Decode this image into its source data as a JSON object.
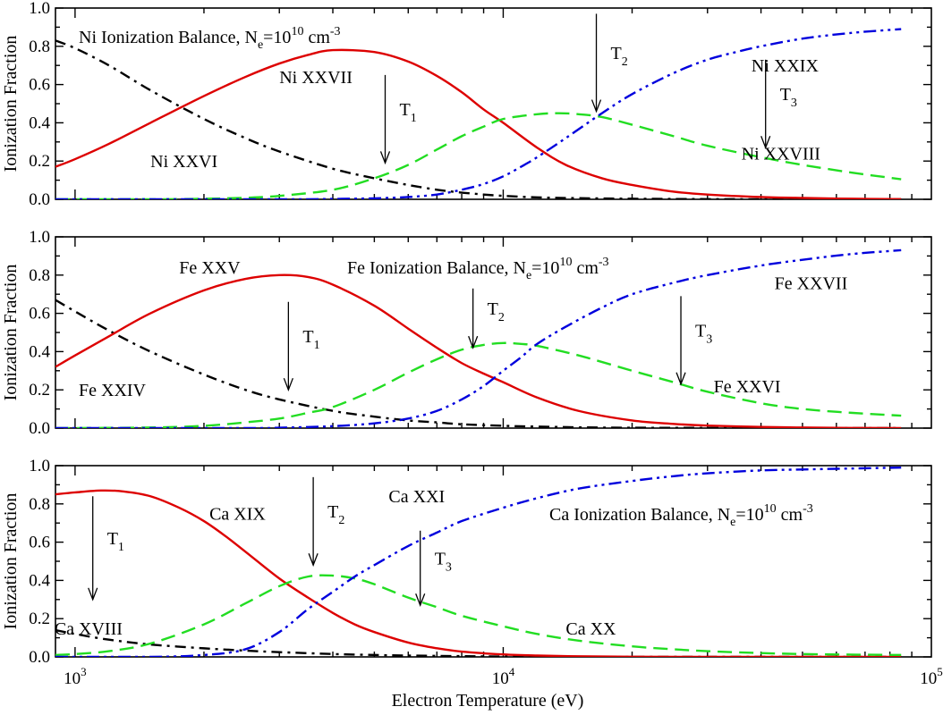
{
  "figure": {
    "xlabel": "Electron Temperature (eV)",
    "x_tick_labels": [
      {
        "value": 1000,
        "base": "10",
        "exp": "3"
      },
      {
        "value": 10000,
        "base": "10",
        "exp": "4"
      },
      {
        "value": 100000,
        "base": "10",
        "exp": "5"
      }
    ]
  },
  "chart_data": [
    {
      "type": "line",
      "panel": "ni",
      "ylabel": "Ionization Fraction",
      "xscale": "log",
      "xlim": [
        900,
        100000
      ],
      "ylim": [
        0,
        1
      ],
      "y_ticks": [
        "0.0",
        "0.2",
        "0.4",
        "0.6",
        "0.8",
        "1.0"
      ],
      "balance_label": {
        "prefix": "Ni Ionization Balance, N",
        "sub": "e",
        "mid": "=10",
        "sup1": "10",
        "unit": " cm",
        "sup2": "-3"
      },
      "series": [
        {
          "id": "ni-xxvi",
          "label": "Ni XXVI",
          "color": "#000000",
          "dash": "12,6,3,6",
          "x": [
            900,
            1000,
            1200,
            1500,
            2000,
            2500,
            3000,
            4000,
            5000,
            6000,
            7000,
            8000,
            9000,
            10000,
            12000,
            15000,
            20000,
            30000,
            50000,
            85000
          ],
          "y": [
            0.83,
            0.79,
            0.7,
            0.57,
            0.42,
            0.32,
            0.25,
            0.16,
            0.11,
            0.075,
            0.05,
            0.035,
            0.025,
            0.018,
            0.01,
            0.006,
            0.003,
            0.001,
            0.0,
            0.0
          ]
        },
        {
          "id": "ni-xxvii",
          "label": "Ni XXVII",
          "color": "#dd0000",
          "dash": "",
          "x": [
            900,
            1000,
            1200,
            1500,
            2000,
            2500,
            3000,
            3500,
            4000,
            5000,
            6000,
            7000,
            8000,
            9000,
            10000,
            12000,
            14000,
            17000,
            20000,
            25000,
            30000,
            40000,
            50000,
            65000,
            85000
          ],
          "y": [
            0.17,
            0.21,
            0.29,
            0.4,
            0.54,
            0.64,
            0.71,
            0.755,
            0.78,
            0.77,
            0.72,
            0.645,
            0.56,
            0.47,
            0.4,
            0.27,
            0.18,
            0.11,
            0.075,
            0.04,
            0.025,
            0.012,
            0.007,
            0.003,
            0.001
          ]
        },
        {
          "id": "ni-xxviii",
          "label": "Ni XXVIII",
          "color": "#22dd22",
          "dash": "16,8",
          "x": [
            900,
            1500,
            2000,
            2500,
            3000,
            4000,
            5000,
            6000,
            7000,
            8000,
            9000,
            10000,
            12000,
            13500,
            15000,
            17000,
            20000,
            25000,
            30000,
            40000,
            50000,
            65000,
            85000
          ],
          "y": [
            0.0,
            0.0,
            0.003,
            0.008,
            0.018,
            0.05,
            0.11,
            0.18,
            0.26,
            0.33,
            0.38,
            0.42,
            0.445,
            0.45,
            0.445,
            0.43,
            0.39,
            0.33,
            0.28,
            0.22,
            0.18,
            0.14,
            0.105
          ]
        },
        {
          "id": "ni-xxix",
          "label": "Ni XXIX",
          "color": "#0000dd",
          "dash": "14,5,3,5,3,5",
          "x": [
            900,
            3000,
            4000,
            5000,
            6000,
            7000,
            8000,
            9000,
            10000,
            11000,
            12000,
            14000,
            17000,
            20000,
            25000,
            30000,
            35000,
            40000,
            50000,
            65000,
            85000
          ],
          "y": [
            0.0,
            0.0,
            0.002,
            0.005,
            0.012,
            0.025,
            0.05,
            0.08,
            0.12,
            0.17,
            0.22,
            0.32,
            0.45,
            0.55,
            0.66,
            0.73,
            0.77,
            0.8,
            0.84,
            0.87,
            0.89
          ]
        }
      ],
      "ion_labels": [
        {
          "id": "ni-xxvi",
          "text": "Ni XXVI",
          "x": 1500,
          "y": 0.2,
          "anchor": "start"
        },
        {
          "id": "ni-xxvii",
          "text": "Ni XXVII",
          "x": 3000,
          "y": 0.64,
          "anchor": "start"
        },
        {
          "id": "ni-xxviii",
          "text": "Ni XXVIII",
          "x": 36000,
          "y": 0.24,
          "anchor": "start"
        },
        {
          "id": "ni-xxix",
          "text": "Ni XXIX",
          "x": 38000,
          "y": 0.7,
          "anchor": "start"
        }
      ],
      "arrows": [
        {
          "id": "ni-t1",
          "label": "T",
          "sub": "1",
          "x": 5300,
          "y_from": 0.65,
          "y_to": 0.19
        },
        {
          "id": "ni-t2",
          "label": "T",
          "sub": "2",
          "x": 16500,
          "y_from": 0.97,
          "y_to": 0.46
        },
        {
          "id": "ni-t3",
          "label": "T",
          "sub": "3",
          "x": 41000,
          "y_from": 0.73,
          "y_to": 0.27
        }
      ]
    },
    {
      "type": "line",
      "panel": "fe",
      "ylabel": "Ionization Fraction",
      "xscale": "log",
      "xlim": [
        900,
        100000
      ],
      "ylim": [
        0,
        1
      ],
      "y_ticks": [
        "0.0",
        "0.2",
        "0.4",
        "0.6",
        "0.8",
        "1.0"
      ],
      "balance_label": {
        "prefix": "Fe Ionization Balance, N",
        "sub": "e",
        "mid": "=10",
        "sup1": "10",
        "unit": " cm",
        "sup2": "-3"
      },
      "series": [
        {
          "id": "fe-xxiv",
          "label": "Fe XXIV",
          "color": "#000000",
          "dash": "12,6,3,6",
          "x": [
            900,
            1000,
            1200,
            1500,
            2000,
            2500,
            3000,
            4000,
            5000,
            6000,
            7000,
            8000,
            10000,
            12000,
            15000,
            20000,
            30000,
            50000,
            85000
          ],
          "y": [
            0.67,
            0.61,
            0.51,
            0.4,
            0.28,
            0.2,
            0.15,
            0.09,
            0.06,
            0.04,
            0.03,
            0.02,
            0.012,
            0.008,
            0.004,
            0.002,
            0.001,
            0.0,
            0.0
          ]
        },
        {
          "id": "fe-xxv",
          "label": "Fe XXV",
          "color": "#dd0000",
          "dash": "",
          "x": [
            900,
            1000,
            1200,
            1500,
            2000,
            2500,
            3000,
            3500,
            4000,
            5000,
            6000,
            7000,
            8000,
            9000,
            10000,
            12000,
            15000,
            20000,
            25000,
            30000,
            40000,
            50000,
            65000,
            85000
          ],
          "y": [
            0.32,
            0.38,
            0.48,
            0.6,
            0.72,
            0.78,
            0.8,
            0.79,
            0.75,
            0.64,
            0.52,
            0.42,
            0.34,
            0.285,
            0.24,
            0.16,
            0.09,
            0.04,
            0.022,
            0.013,
            0.006,
            0.003,
            0.001,
            0.0
          ]
        },
        {
          "id": "fe-xxvi",
          "label": "Fe XXVI",
          "color": "#22dd22",
          "dash": "16,8",
          "x": [
            900,
            1500,
            2000,
            2500,
            3000,
            3500,
            4000,
            5000,
            6000,
            7000,
            8000,
            9000,
            10000,
            11000,
            12000,
            15000,
            20000,
            25000,
            30000,
            40000,
            50000,
            65000,
            85000
          ],
          "y": [
            0.0,
            0.003,
            0.012,
            0.03,
            0.05,
            0.08,
            0.11,
            0.2,
            0.29,
            0.36,
            0.41,
            0.435,
            0.445,
            0.44,
            0.43,
            0.38,
            0.3,
            0.24,
            0.19,
            0.13,
            0.1,
            0.08,
            0.065
          ]
        },
        {
          "id": "fe-xxvii",
          "label": "Fe XXVII",
          "color": "#0000dd",
          "dash": "14,5,3,5,3,5",
          "x": [
            900,
            2500,
            3000,
            4000,
            5000,
            6000,
            7000,
            8000,
            9000,
            10000,
            11000,
            12000,
            14000,
            17000,
            20000,
            25000,
            30000,
            40000,
            50000,
            65000,
            85000
          ],
          "y": [
            0.0,
            0.0,
            0.002,
            0.01,
            0.025,
            0.05,
            0.09,
            0.15,
            0.22,
            0.3,
            0.37,
            0.44,
            0.53,
            0.63,
            0.7,
            0.76,
            0.8,
            0.85,
            0.88,
            0.91,
            0.93
          ]
        }
      ],
      "ion_labels": [
        {
          "id": "fe-xxiv",
          "text": "Fe XXIV",
          "x": 1020,
          "y": 0.2,
          "anchor": "start"
        },
        {
          "id": "fe-xxv",
          "text": "Fe XXV",
          "x": 1750,
          "y": 0.84,
          "anchor": "start"
        },
        {
          "id": "fe-xxvi",
          "text": "Fe XXVI",
          "x": 31000,
          "y": 0.22,
          "anchor": "start"
        },
        {
          "id": "fe-xxvii",
          "text": "Fe XXVII",
          "x": 43000,
          "y": 0.76,
          "anchor": "start"
        }
      ],
      "arrows": [
        {
          "id": "fe-t1",
          "label": "T",
          "sub": "1",
          "x": 3150,
          "y_from": 0.66,
          "y_to": 0.2
        },
        {
          "id": "fe-t2",
          "label": "T",
          "sub": "2",
          "x": 8500,
          "y_from": 0.73,
          "y_to": 0.42
        },
        {
          "id": "fe-t3",
          "label": "T",
          "sub": "3",
          "x": 26000,
          "y_from": 0.69,
          "y_to": 0.23
        }
      ]
    },
    {
      "type": "line",
      "panel": "ca",
      "ylabel": "Ionization Fraction",
      "xscale": "log",
      "xlim": [
        900,
        100000
      ],
      "ylim": [
        0,
        1
      ],
      "y_ticks": [
        "0.0",
        "0.2",
        "0.4",
        "0.6",
        "0.8",
        "1.0"
      ],
      "balance_label": {
        "prefix": "Ca Ionization Balance, N",
        "sub": "e",
        "mid": "=10",
        "sup1": "10",
        "unit": " cm",
        "sup2": "-3"
      },
      "series": [
        {
          "id": "ca-xviii",
          "label": "Ca XVIII",
          "color": "#000000",
          "dash": "12,6,3,6",
          "x": [
            900,
            1000,
            1200,
            1500,
            2000,
            2500,
            3000,
            4000,
            5000,
            6000,
            8000,
            10000,
            15000,
            25000,
            50000,
            85000
          ],
          "y": [
            0.14,
            0.12,
            0.09,
            0.065,
            0.045,
            0.033,
            0.025,
            0.015,
            0.01,
            0.007,
            0.004,
            0.002,
            0.001,
            0.0,
            0.0,
            0.0
          ]
        },
        {
          "id": "ca-xix",
          "label": "Ca XIX",
          "color": "#dd0000",
          "dash": "",
          "x": [
            900,
            1000,
            1150,
            1300,
            1500,
            1750,
            2000,
            2250,
            2500,
            3000,
            3500,
            4000,
            4500,
            5000,
            6000,
            7000,
            8000,
            10000,
            12000,
            15000,
            20000,
            30000,
            50000,
            85000
          ],
          "y": [
            0.85,
            0.86,
            0.87,
            0.865,
            0.84,
            0.78,
            0.71,
            0.63,
            0.55,
            0.41,
            0.31,
            0.23,
            0.17,
            0.13,
            0.075,
            0.045,
            0.028,
            0.013,
            0.007,
            0.003,
            0.001,
            0.0,
            0.0,
            0.0
          ]
        },
        {
          "id": "ca-xx",
          "label": "Ca XX",
          "color": "#22dd22",
          "dash": "16,8",
          "x": [
            900,
            1000,
            1200,
            1500,
            2000,
            2500,
            3000,
            3500,
            4000,
            4500,
            5000,
            6000,
            7000,
            8000,
            10000,
            12000,
            15000,
            20000,
            25000,
            30000,
            40000,
            50000,
            65000,
            85000
          ],
          "y": [
            0.01,
            0.015,
            0.03,
            0.07,
            0.17,
            0.28,
            0.37,
            0.42,
            0.425,
            0.41,
            0.38,
            0.31,
            0.26,
            0.215,
            0.16,
            0.12,
            0.085,
            0.055,
            0.04,
            0.03,
            0.02,
            0.015,
            0.012,
            0.01
          ]
        },
        {
          "id": "ca-xxi",
          "label": "Ca XXI",
          "color": "#0000dd",
          "dash": "14,5,3,5,3,5",
          "x": [
            900,
            1500,
            2000,
            2500,
            3000,
            3500,
            4000,
            4500,
            5000,
            6000,
            7000,
            8000,
            10000,
            12000,
            15000,
            20000,
            25000,
            30000,
            40000,
            50000,
            65000,
            85000
          ],
          "y": [
            0.0,
            0.0,
            0.01,
            0.04,
            0.13,
            0.25,
            0.34,
            0.42,
            0.48,
            0.58,
            0.65,
            0.71,
            0.78,
            0.83,
            0.88,
            0.92,
            0.945,
            0.96,
            0.975,
            0.98,
            0.985,
            0.99
          ]
        }
      ],
      "ion_labels": [
        {
          "id": "ca-xviii",
          "text": "Ca XVIII",
          "x": 895,
          "y": 0.15,
          "anchor": "start"
        },
        {
          "id": "ca-xix",
          "text": "Ca XIX",
          "x": 2060,
          "y": 0.75,
          "anchor": "start"
        },
        {
          "id": "ca-xx",
          "text": "Ca XX",
          "x": 14000,
          "y": 0.15,
          "anchor": "start"
        },
        {
          "id": "ca-xxi",
          "text": "Ca XXI",
          "x": 5400,
          "y": 0.84,
          "anchor": "start"
        },
        {
          "id": "ca-balance",
          "text": "",
          "x": 15000,
          "y": 0.0,
          "anchor": "start"
        }
      ],
      "arrows": [
        {
          "id": "ca-t1",
          "label": "T",
          "sub": "1",
          "x": 1100,
          "y_from": 0.84,
          "y_to": 0.3
        },
        {
          "id": "ca-t2",
          "label": "T",
          "sub": "2",
          "x": 3600,
          "y_from": 0.94,
          "y_to": 0.48
        },
        {
          "id": "ca-t3",
          "label": "T",
          "sub": "3",
          "x": 6400,
          "y_from": 0.66,
          "y_to": 0.27
        }
      ]
    }
  ]
}
